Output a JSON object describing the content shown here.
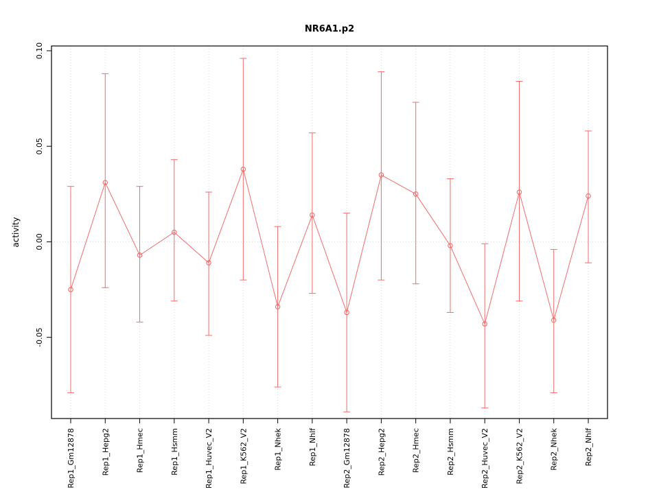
{
  "title": "NR6A1.p2",
  "colors": {
    "line": "#f26b6b",
    "grid": "#d6d6d6",
    "axis": "#000000",
    "background": "#ffffff"
  },
  "chart_data": {
    "type": "line",
    "title": "NR6A1.p2",
    "xlabel": "",
    "ylabel": "activity",
    "ylim": [
      -0.0925,
      0.1025
    ],
    "yticks": [
      -0.05,
      0.0,
      0.05,
      0.1
    ],
    "ytick_labels": [
      "-0.05",
      "0.00",
      "0.05",
      "0.10"
    ],
    "grid": "dotted vertical line at each category; dotted horizontal line at 0",
    "legend": "none",
    "point_style": "open-circle",
    "error_bars": true,
    "categories": [
      "Rep1_Gm12878",
      "Rep1_Hepg2",
      "Rep1_Hmec",
      "Rep1_Hsmm",
      "Rep1_Huvec_V2",
      "Rep1_K562_V2",
      "Rep1_Nhek",
      "Rep1_Nhlf",
      "Rep2_Gm12878",
      "Rep2_Hepg2",
      "Rep2_Hmec",
      "Rep2_Hsmm",
      "Rep2_Huvec_V2",
      "Rep2_K562_V2",
      "Rep2_Nhek",
      "Rep2_Nhlf"
    ],
    "series": [
      {
        "name": "activity",
        "color": "#f26b6b",
        "values": [
          -0.025,
          0.031,
          -0.007,
          0.005,
          -0.011,
          0.038,
          -0.034,
          0.014,
          -0.037,
          0.035,
          0.025,
          -0.002,
          -0.043,
          0.026,
          -0.041,
          0.024
        ],
        "lower": [
          -0.079,
          -0.024,
          -0.042,
          -0.031,
          -0.049,
          -0.02,
          -0.076,
          -0.027,
          -0.089,
          -0.02,
          -0.022,
          -0.037,
          -0.087,
          -0.031,
          -0.079,
          -0.011
        ],
        "upper": [
          0.029,
          0.088,
          0.029,
          0.043,
          0.026,
          0.096,
          0.008,
          0.057,
          0.015,
          0.089,
          0.073,
          0.033,
          -0.001,
          0.084,
          -0.004,
          0.058
        ]
      }
    ]
  }
}
